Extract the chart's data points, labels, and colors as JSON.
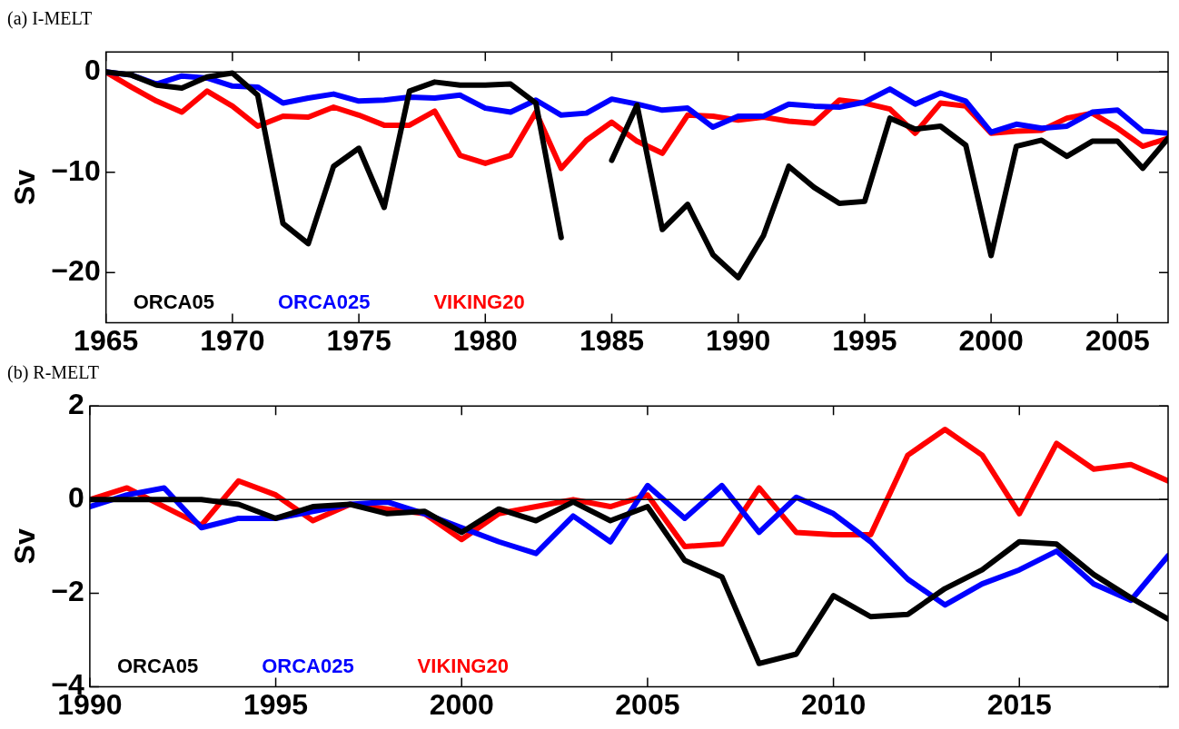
{
  "chart_data": [
    {
      "type": "line",
      "title": "(a) I-MELT",
      "ylabel": "Sv",
      "x": [
        1965,
        1966,
        1967,
        1968,
        1969,
        1970,
        1971,
        1972,
        1973,
        1974,
        1975,
        1976,
        1977,
        1978,
        1979,
        1980,
        1981,
        1982,
        1983,
        1984,
        1985,
        1986,
        1987,
        1988,
        1989,
        1990,
        1991,
        1992,
        1993,
        1994,
        1995,
        1996,
        1997,
        1998,
        1999,
        2000,
        2001,
        2002,
        2003,
        2004,
        2005,
        2006,
        2007
      ],
      "series": [
        {
          "name": "ORCA05",
          "color": "#000000",
          "values": [
            0,
            -0.3,
            -1.3,
            -1.6,
            -0.5,
            -0.1,
            -2.3,
            -15.1,
            -17.1,
            -9.4,
            -7.6,
            -13.5,
            -1.9,
            -1.0,
            -1.3,
            -1.3,
            -1.2,
            -3.1,
            -16.5,
            null,
            -8.8,
            -3.3,
            -15.7,
            -13.2,
            -18.2,
            -20.5,
            -16.3,
            -9.4,
            -11.5,
            -13.1,
            -12.9,
            -4.6,
            -5.7,
            -5.4,
            -7.3,
            -18.3,
            -7.4,
            -6.8,
            -8.4,
            -6.9,
            -6.9,
            -9.6,
            -6.6
          ]
        },
        {
          "name": "ORCA025",
          "color": "#0000ff",
          "values": [
            0,
            -0.3,
            -1.2,
            -0.4,
            -0.6,
            -1.4,
            -1.5,
            -3.1,
            -2.6,
            -2.2,
            -2.9,
            -2.8,
            -2.5,
            -2.6,
            -2.3,
            -3.6,
            -4.0,
            -2.8,
            -4.3,
            -4.1,
            -2.7,
            -3.2,
            -3.8,
            -3.6,
            -5.5,
            -4.4,
            -4.4,
            -3.2,
            -3.4,
            -3.5,
            -3.0,
            -1.7,
            -3.2,
            -2.1,
            -2.9,
            -6.0,
            -5.2,
            -5.6,
            -5.4,
            -4.0,
            -3.8,
            -5.9,
            -6.1
          ]
        },
        {
          "name": "VIKING20",
          "color": "#ff0000",
          "values": [
            0,
            -1.5,
            -2.9,
            -4.0,
            -1.9,
            -3.4,
            -5.4,
            -4.4,
            -4.5,
            -3.5,
            -4.3,
            -5.3,
            -5.3,
            -3.9,
            -8.3,
            -9.1,
            -8.3,
            -4.0,
            -9.6,
            -6.8,
            -5.0,
            -6.9,
            -8.1,
            -4.3,
            -4.4,
            -4.8,
            -4.5,
            -4.9,
            -5.1,
            -2.8,
            -3.1,
            -3.7,
            -6.1,
            -3.1,
            -3.4,
            -6.1,
            -5.9,
            -5.8,
            -4.6,
            -4.1,
            -5.6,
            -7.4,
            -6.6
          ]
        }
      ],
      "xlim": [
        1965,
        2007
      ],
      "xticks": [
        1965,
        1970,
        1975,
        1980,
        1985,
        1990,
        1995,
        2000,
        2005
      ],
      "ylim": [
        -25,
        2
      ],
      "yticks": [
        -20,
        -10,
        0
      ],
      "ref_lines": [
        {
          "axis": "y",
          "value": 0
        }
      ],
      "grid": false,
      "legend": "bottom left",
      "marker": "none",
      "line_style": "solid"
    },
    {
      "type": "line",
      "title": "(b) R-MELT",
      "ylabel": "Sv",
      "x": [
        1990,
        1991,
        1992,
        1993,
        1994,
        1995,
        1996,
        1997,
        1998,
        1999,
        2000,
        2001,
        2002,
        2003,
        2004,
        2005,
        2006,
        2007,
        2008,
        2009,
        2010,
        2011,
        2012,
        2013,
        2014,
        2015,
        2016,
        2017,
        2018,
        2019
      ],
      "series": [
        {
          "name": "ORCA05",
          "color": "#000000",
          "values": [
            0,
            0,
            0,
            0,
            -0.1,
            -0.4,
            -0.15,
            -0.1,
            -0.3,
            -0.25,
            -0.7,
            -0.2,
            -0.45,
            -0.05,
            -0.45,
            -0.15,
            -1.3,
            -1.65,
            -3.5,
            -3.3,
            -2.05,
            -2.5,
            -2.45,
            -1.9,
            -1.5,
            -0.9,
            -0.95,
            -1.6,
            -2.1,
            -2.55
          ]
        },
        {
          "name": "ORCA025",
          "color": "#0000ff",
          "values": [
            -0.15,
            0.1,
            0.25,
            -0.6,
            -0.4,
            -0.4,
            -0.25,
            -0.1,
            -0.05,
            -0.3,
            -0.6,
            -0.9,
            -1.15,
            -0.35,
            -0.9,
            0.3,
            -0.4,
            0.3,
            -0.7,
            0.05,
            -0.3,
            -0.9,
            -1.7,
            -2.25,
            -1.8,
            -1.5,
            -1.1,
            -1.8,
            -2.15,
            -1.2
          ]
        },
        {
          "name": "VIKING20",
          "color": "#ff0000",
          "values": [
            0,
            0.25,
            -0.15,
            -0.55,
            0.4,
            0.1,
            -0.45,
            -0.1,
            -0.2,
            -0.3,
            -0.85,
            -0.3,
            -0.15,
            0,
            -0.15,
            0.1,
            -1.0,
            -0.95,
            0.25,
            -0.7,
            -0.75,
            -0.75,
            0.95,
            1.5,
            0.95,
            -0.3,
            1.2,
            0.65,
            0.75,
            0.4
          ]
        }
      ],
      "xlim": [
        1990,
        2019
      ],
      "xticks": [
        1990,
        1995,
        2000,
        2005,
        2010,
        2015
      ],
      "ylim": [
        -4,
        2
      ],
      "yticks": [
        -4,
        -2,
        0,
        2
      ],
      "ref_lines": [
        {
          "axis": "y",
          "value": 0
        }
      ],
      "grid": false,
      "legend": "bottom left",
      "marker": "none",
      "line_style": "solid"
    }
  ]
}
